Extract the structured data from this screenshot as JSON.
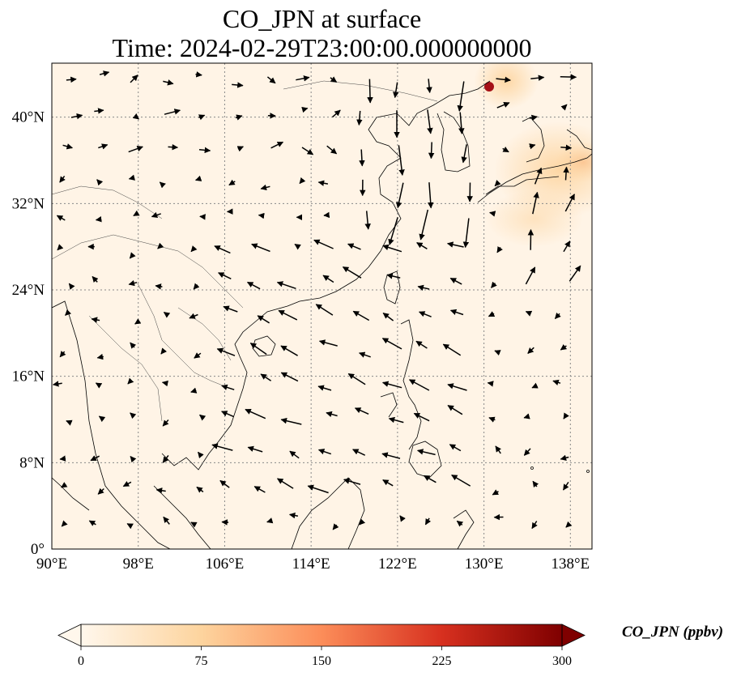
{
  "title": {
    "line1": "CO_JPN at surface",
    "line2": "Time: 2024-02-29T23:00:00.000000000"
  },
  "map": {
    "lon_range": [
      90,
      140
    ],
    "lat_range": [
      0,
      45
    ],
    "lon_ticks": [
      "90°E",
      "98°E",
      "106°E",
      "114°E",
      "122°E",
      "130°E",
      "138°E"
    ],
    "lat_ticks": [
      "0°",
      "8°N",
      "16°N",
      "24°N",
      "32°N",
      "40°N"
    ],
    "gridlines": true,
    "field_colormap": "OrRd",
    "high_concentration_area": "northeast corner near Korea / Japan",
    "wind_vectors": "black arrows showing surface winds (strong NE monsoon flow over South China Sea)"
  },
  "colorbar": {
    "label": "CO_JPN (ppbv)",
    "ticks": [
      "0",
      "75",
      "150",
      "225",
      "300"
    ],
    "min": 0,
    "max": 300,
    "extend": "both",
    "colors": [
      "#fff7ec",
      "#fdd49e",
      "#fc8d59",
      "#d7301f",
      "#7f0000"
    ]
  }
}
